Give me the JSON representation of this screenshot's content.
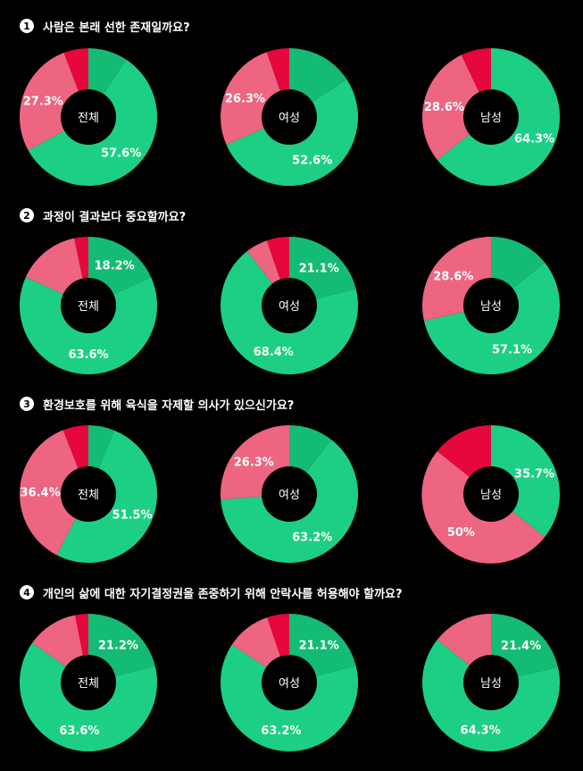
{
  "colors": {
    "green": "#1ccf84",
    "green_dark": "#14bb74",
    "pink": "#ed6580",
    "red": "#e6073c",
    "hole": "#000000"
  },
  "questions": [
    {
      "number": "1",
      "text": "사람은 본래 선한 존재일까요?"
    },
    {
      "number": "2",
      "text": "과정이 결과보다 중요할까요?"
    },
    {
      "number": "3",
      "text": "환경보호를 위해 육식을 자제할 의사가 있으신가요?"
    },
    {
      "number": "4",
      "text": "개인의 삶에 대한 자기결정권을 존중하기 위해 안락사를 허용해야 할까요?"
    }
  ],
  "chart_data": [
    {
      "type": "pie",
      "question": "1",
      "center_label": "전체",
      "slices": [
        {
          "value": 9.3,
          "color": "green_dark"
        },
        {
          "value": 57.6,
          "label": "57.6%",
          "color": "green"
        },
        {
          "value": 27.3,
          "label": "27.3%",
          "color": "pink"
        },
        {
          "value": 5.8,
          "color": "red"
        }
      ]
    },
    {
      "type": "pie",
      "question": "1",
      "center_label": "여성",
      "slices": [
        {
          "value": 15.8,
          "color": "green_dark"
        },
        {
          "value": 52.6,
          "label": "52.6%",
          "color": "green"
        },
        {
          "value": 26.3,
          "label": "26.3%",
          "color": "pink"
        },
        {
          "value": 5.3,
          "color": "red"
        }
      ]
    },
    {
      "type": "pie",
      "question": "1",
      "center_label": "남성",
      "slices": [
        {
          "value": 64.3,
          "label": "64.3%",
          "color": "green"
        },
        {
          "value": 28.6,
          "label": "28.6%",
          "color": "pink"
        },
        {
          "value": 7.1,
          "color": "red"
        }
      ]
    },
    {
      "type": "pie",
      "question": "2",
      "center_label": "전체",
      "slices": [
        {
          "value": 18.2,
          "label": "18.2%",
          "color": "green_dark"
        },
        {
          "value": 63.6,
          "label": "63.6%",
          "color": "green"
        },
        {
          "value": 14.9,
          "color": "pink"
        },
        {
          "value": 3.3,
          "color": "red"
        }
      ]
    },
    {
      "type": "pie",
      "question": "2",
      "center_label": "여성",
      "slices": [
        {
          "value": 21.1,
          "label": "21.1%",
          "color": "green_dark"
        },
        {
          "value": 68.4,
          "label": "68.4%",
          "color": "green"
        },
        {
          "value": 5.2,
          "color": "pink"
        },
        {
          "value": 5.3,
          "color": "red"
        }
      ]
    },
    {
      "type": "pie",
      "question": "2",
      "center_label": "남성",
      "slices": [
        {
          "value": 14.3,
          "color": "green_dark"
        },
        {
          "value": 57.1,
          "label": "57.1%",
          "color": "green"
        },
        {
          "value": 28.6,
          "label": "28.6%",
          "color": "pink"
        }
      ]
    },
    {
      "type": "pie",
      "question": "3",
      "center_label": "전체",
      "slices": [
        {
          "value": 6.1,
          "color": "green_dark"
        },
        {
          "value": 51.5,
          "label": "51.5%",
          "color": "green"
        },
        {
          "value": 36.4,
          "label": "36.4%",
          "color": "pink"
        },
        {
          "value": 6.0,
          "color": "red"
        }
      ]
    },
    {
      "type": "pie",
      "question": "3",
      "center_label": "여성",
      "slices": [
        {
          "value": 10.5,
          "color": "green_dark"
        },
        {
          "value": 63.2,
          "label": "63.2%",
          "color": "green"
        },
        {
          "value": 26.3,
          "label": "26.3%",
          "color": "pink"
        }
      ]
    },
    {
      "type": "pie",
      "question": "3",
      "center_label": "남성",
      "slices": [
        {
          "value": 35.7,
          "label": "35.7%",
          "color": "green"
        },
        {
          "value": 50.0,
          "label": "50%",
          "color": "pink"
        },
        {
          "value": 14.3,
          "color": "red"
        }
      ]
    },
    {
      "type": "pie",
      "question": "4",
      "center_label": "전체",
      "slices": [
        {
          "value": 21.2,
          "label": "21.2%",
          "color": "green_dark"
        },
        {
          "value": 63.6,
          "label": "63.6%",
          "color": "green"
        },
        {
          "value": 12.1,
          "color": "pink"
        },
        {
          "value": 3.1,
          "color": "red"
        }
      ]
    },
    {
      "type": "pie",
      "question": "4",
      "center_label": "여성",
      "slices": [
        {
          "value": 21.1,
          "label": "21.1%",
          "color": "green_dark"
        },
        {
          "value": 63.2,
          "label": "63.2%",
          "color": "green"
        },
        {
          "value": 10.5,
          "color": "pink"
        },
        {
          "value": 5.2,
          "color": "red"
        }
      ]
    },
    {
      "type": "pie",
      "question": "4",
      "center_label": "남성",
      "slices": [
        {
          "value": 21.4,
          "label": "21.4%",
          "color": "green_dark"
        },
        {
          "value": 64.3,
          "label": "64.3%",
          "color": "green"
        },
        {
          "value": 14.3,
          "color": "pink"
        }
      ]
    }
  ]
}
